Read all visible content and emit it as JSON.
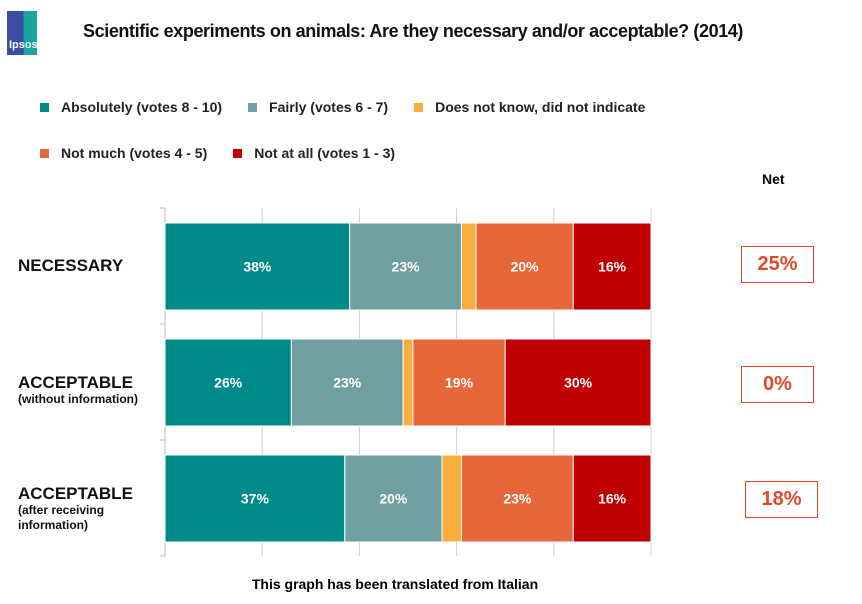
{
  "logo_text": "Ipsos",
  "chart_data": {
    "type": "bar",
    "orientation": "horizontal-stacked-100",
    "title": "Scientific experiments on animals: Are they necessary and/or acceptable? (2014)",
    "categories": [
      {
        "label": "NECESSARY",
        "sublabel": ""
      },
      {
        "label": "ACCEPTABLE",
        "sublabel": "(without information)"
      },
      {
        "label": "ACCEPTABLE",
        "sublabel": "(after receiving information)"
      }
    ],
    "series": [
      {
        "name": "Absolutely (votes 8 - 10)",
        "color": "#008b8b",
        "values": [
          38,
          26,
          37
        ],
        "labels": [
          "38%",
          "26%",
          "37%"
        ]
      },
      {
        "name": "Fairly (votes 6 - 7)",
        "color": "#709fa2",
        "values": [
          23,
          23,
          20
        ],
        "labels": [
          "23%",
          "23%",
          "20%"
        ]
      },
      {
        "name": "Does not know, did not indicate",
        "color": "#f8ae3c",
        "values": [
          3,
          2,
          4
        ],
        "labels": [
          "",
          "",
          ""
        ]
      },
      {
        "name": "Not much (votes 4 - 5)",
        "color": "#e8673a",
        "values": [
          20,
          19,
          23
        ],
        "labels": [
          "20%",
          "19%",
          "23%"
        ]
      },
      {
        "name": "Not at all (votes 1 - 3)",
        "color": "#c00000",
        "values": [
          16,
          30,
          16
        ],
        "labels": [
          "16%",
          "30%",
          "16%"
        ]
      }
    ],
    "xlim": [
      0,
      100
    ],
    "grid": true,
    "legend_placement": "top",
    "net_header": "Net",
    "net": [
      "25%",
      "0%",
      "18%"
    ],
    "footnote": "This graph has been translated from Italian"
  }
}
